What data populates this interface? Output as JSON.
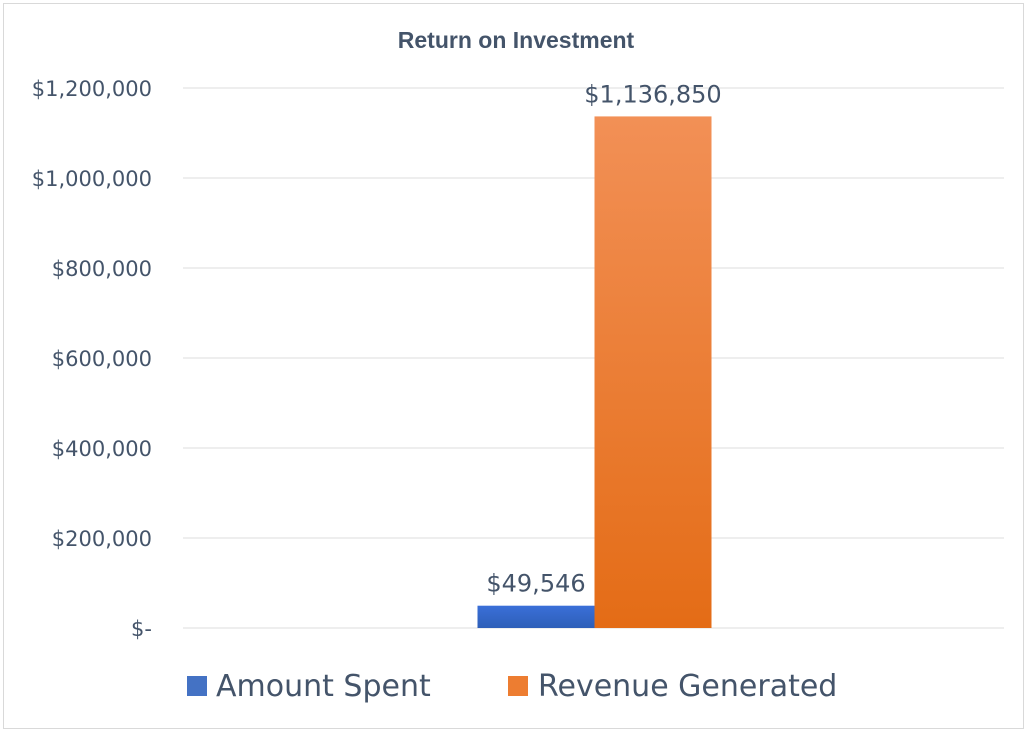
{
  "chart_data": {
    "type": "bar",
    "title": "Return on Investment",
    "categories": [
      ""
    ],
    "series": [
      {
        "name": "Amount Spent",
        "values": [
          49546
        ],
        "label": "$49,546",
        "color": "#4472c4",
        "color_light": "#3a6fd8",
        "color_dark": "#2e5fb8"
      },
      {
        "name": "Revenue Generated",
        "values": [
          1136850
        ],
        "label": "$1,136,850",
        "color": "#ed7d31",
        "color_light": "#f29056",
        "color_dark": "#e46c16"
      }
    ],
    "ylim": [
      0,
      1200000
    ],
    "yticks": [
      {
        "value": 0,
        "label": "$-"
      },
      {
        "value": 200000,
        "label": "$200,000"
      },
      {
        "value": 400000,
        "label": "$400,000"
      },
      {
        "value": 600000,
        "label": "$600,000"
      },
      {
        "value": 800000,
        "label": "$800,000"
      },
      {
        "value": 1000000,
        "label": "$1,000,000"
      },
      {
        "value": 1200000,
        "label": "$1,200,000"
      }
    ],
    "grid": true,
    "legend_position": "bottom"
  }
}
